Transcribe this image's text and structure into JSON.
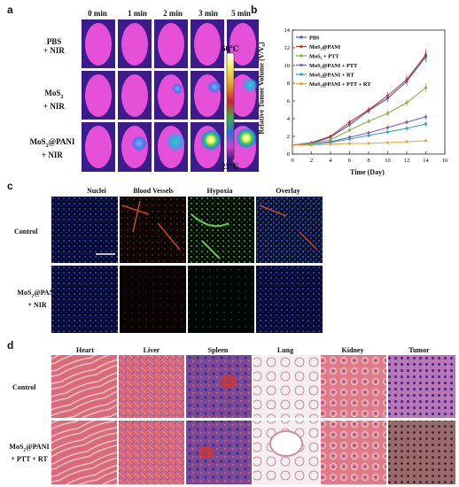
{
  "panel_labels": {
    "a": "a",
    "b": "b",
    "c": "c",
    "d": "d"
  },
  "panel_a": {
    "time_headers": [
      "0 min",
      "1 min",
      "2 min",
      "3 min",
      "5 min"
    ],
    "row_labels": [
      {
        "line1": "PBS",
        "line2": "+ NIR"
      },
      {
        "line1": "MoS",
        "sub": "2",
        "line2": "+ NIR"
      },
      {
        "line1": "MoS",
        "sub": "2",
        "rest": "@PANI",
        "line2": "+ NIR"
      }
    ],
    "scale_max": "60℃",
    "scale_min": "25℃",
    "colors": {
      "scale_top": "#ffffff",
      "scale_bottom": "#3a1c8a"
    }
  },
  "chart_data": {
    "type": "line",
    "xlabel": "Time (Day)",
    "ylabel": "Relative Tumor Volume (V/V₀)",
    "xlim": [
      0,
      16
    ],
    "ylim": [
      0,
      14
    ],
    "xticks": [
      0,
      2,
      4,
      6,
      8,
      10,
      12,
      14,
      16
    ],
    "yticks": [
      0,
      2,
      4,
      6,
      8,
      10,
      12,
      14
    ],
    "x": [
      0,
      2,
      4,
      6,
      8,
      10,
      12,
      14
    ],
    "legend_position": "top-left",
    "series": [
      {
        "name": "PBS",
        "color": "#3b5bdb",
        "values": [
          1.0,
          1.2,
          1.9,
          3.3,
          4.9,
          6.3,
          8.2,
          11.0
        ]
      },
      {
        "name": "MoS₂@PANI",
        "color": "#c0392b",
        "values": [
          1.0,
          1.3,
          2.0,
          3.6,
          5.0,
          6.6,
          8.4,
          11.2
        ]
      },
      {
        "name": "MoS₂ + PTT",
        "color": "#7cb342",
        "values": [
          1.0,
          1.2,
          1.6,
          2.7,
          3.7,
          4.6,
          5.8,
          7.5
        ]
      },
      {
        "name": "MoS₂@PANI + PTT",
        "color": "#7e57c2",
        "values": [
          1.0,
          1.1,
          1.4,
          1.9,
          2.4,
          3.0,
          3.6,
          4.2
        ]
      },
      {
        "name": "MoS₂@PANI + RT",
        "color": "#29a3c4",
        "values": [
          1.0,
          1.1,
          1.3,
          1.7,
          2.1,
          2.5,
          2.9,
          3.4
        ]
      },
      {
        "name": "MoS₂@PANI + PTT + RT",
        "color": "#f0a030",
        "values": [
          1.0,
          1.0,
          1.1,
          1.2,
          1.2,
          1.3,
          1.4,
          1.5
        ]
      }
    ]
  },
  "panel_c": {
    "col_headers": [
      "Nuclei",
      "Blood Vessels",
      "Hypoxia",
      "Overlay"
    ],
    "row_labels": [
      {
        "line1": "Control"
      },
      {
        "line1": "MoS",
        "sub": "2",
        "rest": "@PANI",
        "line2": "+ NIR"
      }
    ]
  },
  "panel_d": {
    "col_headers": [
      "Heart",
      "Liver",
      "Spleen",
      "Lung",
      "Kidney",
      "Tumor"
    ],
    "row_labels": [
      {
        "line1": "Control"
      },
      {
        "line1": "MoS",
        "sub": "2",
        "rest": "@PANI",
        "line2": "+ PTT + RT"
      }
    ]
  }
}
